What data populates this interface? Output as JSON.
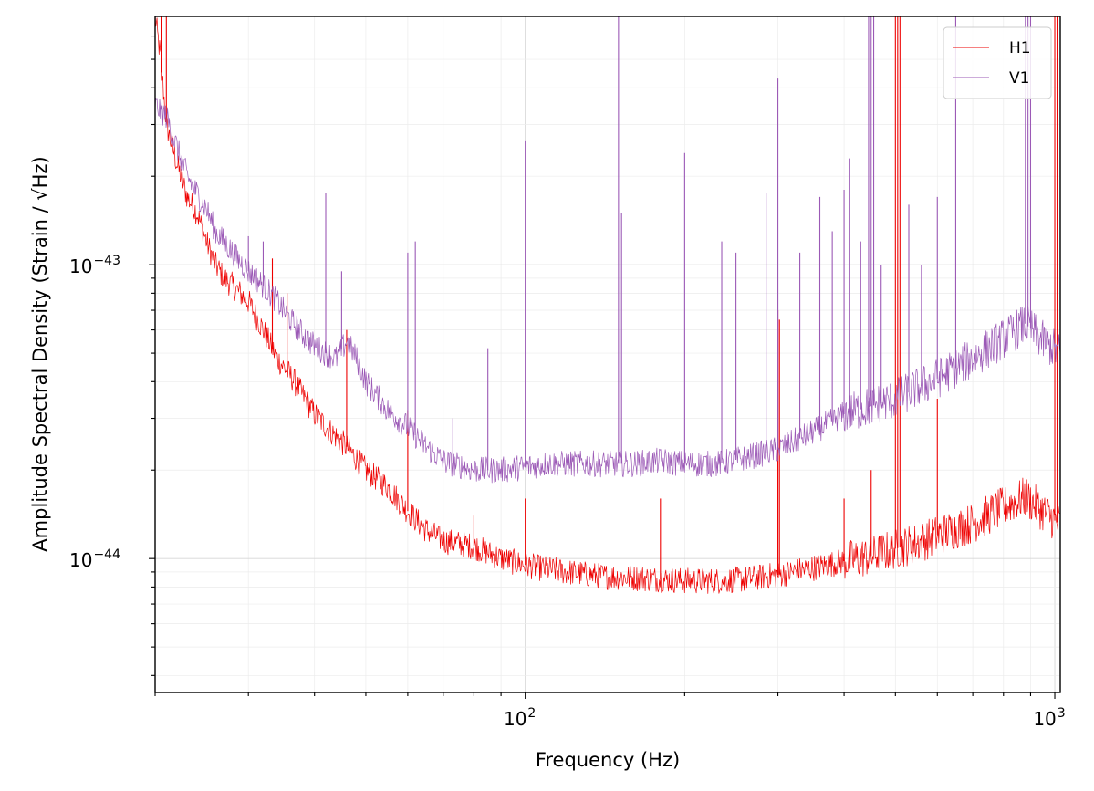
{
  "chart_data": {
    "type": "line",
    "title": "",
    "xlabel": "Frequency (Hz)",
    "ylabel": "Amplitude Spectral Density (Strain / √Hz)",
    "x_scale": "log",
    "y_scale": "log",
    "xlim": [
      20,
      1024
    ],
    "ylim": [
      3.5e-45,
      7e-43
    ],
    "x_ticks": [
      {
        "value": 100,
        "label": "10",
        "exp": "2"
      },
      {
        "value": 1000,
        "label": "10",
        "exp": "3"
      }
    ],
    "y_ticks": [
      {
        "value": 1e-44,
        "label": "10",
        "exp": "−44"
      },
      {
        "value": 1e-43,
        "label": "10",
        "exp": "−43"
      }
    ],
    "grid": true,
    "legend_position": "top-right",
    "series": [
      {
        "name": "H1",
        "color": "#ee0000",
        "x": [
          20,
          20.5,
          21,
          22,
          23,
          24,
          25,
          26,
          27,
          28,
          30,
          32,
          34,
          36,
          38,
          40,
          43,
          46,
          50,
          55,
          60,
          65,
          70,
          80,
          90,
          100,
          110,
          120,
          140,
          160,
          180,
          200,
          230,
          260,
          300,
          350,
          400,
          450,
          500,
          550,
          600,
          700,
          800,
          880,
          950,
          1024
        ],
        "y": [
          7e-43,
          5e-43,
          3e-43,
          2.2e-43,
          1.7e-43,
          1.5e-43,
          1.2e-43,
          1e-43,
          9e-44,
          8.5e-44,
          7.5e-44,
          6e-44,
          4.8e-44,
          4.2e-44,
          3.6e-44,
          3.1e-44,
          2.7e-44,
          2.4e-44,
          2e-44,
          1.75e-44,
          1.45e-44,
          1.25e-44,
          1.15e-44,
          1.1e-44,
          1e-44,
          9.5e-45,
          9.2e-45,
          9e-45,
          8.7e-45,
          8.6e-45,
          8.5e-45,
          8.4e-45,
          8.4e-45,
          8.5e-45,
          8.8e-45,
          9.3e-45,
          9.8e-45,
          1.02e-44,
          1.08e-44,
          1.13e-44,
          1.2e-44,
          1.32e-44,
          1.5e-44,
          1.62e-44,
          1.45e-44,
          1.3e-44
        ],
        "lines": [
          {
            "x": 20.6,
            "peak": 7e-43
          },
          {
            "x": 21.0,
            "peak": 7e-43
          },
          {
            "x": 33.3,
            "peak": 1.05e-43
          },
          {
            "x": 35.5,
            "peak": 8e-44
          },
          {
            "x": 46.0,
            "peak": 6e-44
          },
          {
            "x": 60,
            "peak": 3.2e-44
          },
          {
            "x": 80,
            "peak": 1.4e-44
          },
          {
            "x": 100,
            "peak": 1.6e-44
          },
          {
            "x": 180,
            "peak": 1.6e-44
          },
          {
            "x": 300,
            "peak": 7e-44
          },
          {
            "x": 302,
            "peak": 6.5e-44
          },
          {
            "x": 400,
            "peak": 1.6e-44
          },
          {
            "x": 450,
            "peak": 2e-44
          },
          {
            "x": 500,
            "peak": 7e-43
          },
          {
            "x": 505,
            "peak": 7e-43
          },
          {
            "x": 510,
            "peak": 7e-43
          },
          {
            "x": 600,
            "peak": 3.5e-44
          },
          {
            "x": 1000,
            "peak": 7e-43
          },
          {
            "x": 1010,
            "peak": 7e-43
          }
        ]
      },
      {
        "name": "V1",
        "color": "#9b59b6",
        "x": [
          20,
          21,
          22,
          23,
          24,
          25,
          26,
          28,
          30,
          32,
          34,
          36,
          38,
          40,
          42,
          44,
          46,
          48,
          50,
          55,
          60,
          65,
          70,
          80,
          90,
          100,
          110,
          120,
          140,
          160,
          180,
          200,
          230,
          260,
          300,
          350,
          400,
          450,
          500,
          550,
          600,
          700,
          800,
          880,
          950,
          1024
        ],
        "y": [
          3.5e-43,
          3.2e-43,
          2.5e-43,
          2e-43,
          1.75e-43,
          1.55e-43,
          1.3e-43,
          1.1e-43,
          9.5e-44,
          8.5e-44,
          7.5e-44,
          6.5e-44,
          5.8e-44,
          5.3e-44,
          5e-44,
          4.8e-44,
          5.5e-44,
          4.8e-44,
          4e-44,
          3.2e-44,
          2.8e-44,
          2.4e-44,
          2.15e-44,
          2e-44,
          2e-44,
          2.05e-44,
          2.1e-44,
          2.1e-44,
          2.1e-44,
          2.1e-44,
          2.15e-44,
          2.1e-44,
          2.1e-44,
          2.2e-44,
          2.35e-44,
          2.7e-44,
          3.1e-44,
          3.3e-44,
          3.5e-44,
          3.8e-44,
          4.1e-44,
          4.8e-44,
          5.6e-44,
          6.3e-44,
          5.5e-44,
          5e-44
        ],
        "lines": [
          {
            "x": 30,
            "peak": 1.25e-43
          },
          {
            "x": 32,
            "peak": 1.2e-43
          },
          {
            "x": 42,
            "peak": 1.75e-43
          },
          {
            "x": 45,
            "peak": 9.5e-44
          },
          {
            "x": 60,
            "peak": 1.1e-43
          },
          {
            "x": 62,
            "peak": 1.2e-43
          },
          {
            "x": 73,
            "peak": 3e-44
          },
          {
            "x": 85,
            "peak": 5.2e-44
          },
          {
            "x": 100,
            "peak": 2.65e-43
          },
          {
            "x": 150,
            "peak": 7e-43
          },
          {
            "x": 152,
            "peak": 1.5e-43
          },
          {
            "x": 200,
            "peak": 2.4e-43
          },
          {
            "x": 235,
            "peak": 1.2e-43
          },
          {
            "x": 250,
            "peak": 1.1e-43
          },
          {
            "x": 285,
            "peak": 1.75e-43
          },
          {
            "x": 300,
            "peak": 4.3e-43
          },
          {
            "x": 330,
            "peak": 1.1e-43
          },
          {
            "x": 360,
            "peak": 1.7e-43
          },
          {
            "x": 380,
            "peak": 1.3e-43
          },
          {
            "x": 400,
            "peak": 1.8e-43
          },
          {
            "x": 410,
            "peak": 2.3e-43
          },
          {
            "x": 430,
            "peak": 1.2e-43
          },
          {
            "x": 445,
            "peak": 7e-43
          },
          {
            "x": 450,
            "peak": 7e-43
          },
          {
            "x": 455,
            "peak": 7e-43
          },
          {
            "x": 470,
            "peak": 1e-43
          },
          {
            "x": 530,
            "peak": 1.6e-43
          },
          {
            "x": 560,
            "peak": 1e-43
          },
          {
            "x": 600,
            "peak": 1.7e-43
          },
          {
            "x": 650,
            "peak": 7e-43
          },
          {
            "x": 880,
            "peak": 7e-43
          },
          {
            "x": 890,
            "peak": 7e-43
          },
          {
            "x": 900,
            "peak": 7e-43
          }
        ]
      }
    ]
  }
}
